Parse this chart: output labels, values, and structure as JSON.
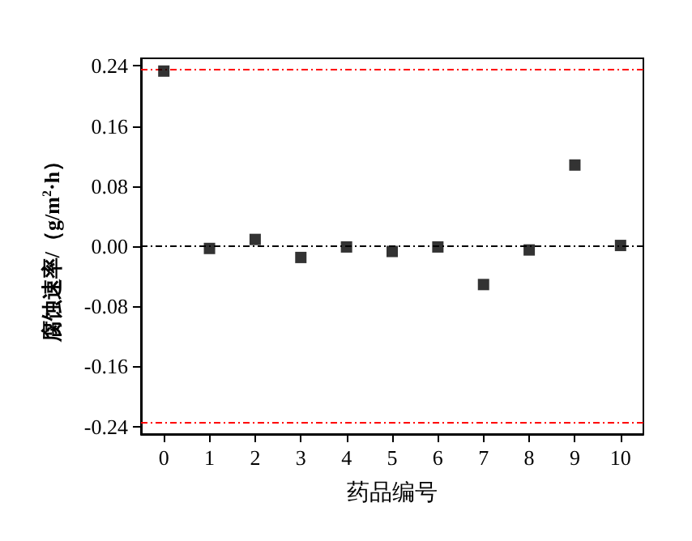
{
  "chart_data": {
    "type": "scatter",
    "xlabel": "药品编号",
    "ylabel": "腐蚀速率/（g/m$^{2}$·h）",
    "x": [
      0,
      1,
      2,
      3,
      4,
      5,
      6,
      7,
      8,
      9,
      10
    ],
    "values": [
      0.233,
      -0.003,
      0.009,
      -0.015,
      -0.001,
      -0.007,
      -0.001,
      -0.051,
      -0.005,
      0.108,
      0.001
    ],
    "color": "#000000",
    "marker": "square",
    "grid": false,
    "xlim": [
      -0.5,
      10.5
    ],
    "xticks": [
      0,
      1,
      2,
      3,
      4,
      5,
      6,
      7,
      8,
      9,
      10
    ],
    "ylim": [
      -0.25,
      0.25
    ],
    "yticks": [
      {
        "value": -0.24,
        "label": "-0.24"
      },
      {
        "value": -0.16,
        "label": "-0.16"
      },
      {
        "value": -0.08,
        "label": "-0.08"
      },
      {
        "value": 0,
        "label": "0.00"
      },
      {
        "value": 0.08,
        "label": "0.08"
      },
      {
        "value": 0.16,
        "label": "0.16"
      },
      {
        "value": 0.24,
        "label": "0.24"
      }
    ],
    "ref_lines": [
      {
        "axis": "y",
        "value": 0.235,
        "color": "#ff0000",
        "line_style": "dashed"
      },
      {
        "axis": "y",
        "value": 0,
        "color": "#000000",
        "line_style": "dashed"
      },
      {
        "axis": "y",
        "value": -0.235,
        "color": "#ff0000",
        "line_style": "dashed"
      }
    ]
  }
}
